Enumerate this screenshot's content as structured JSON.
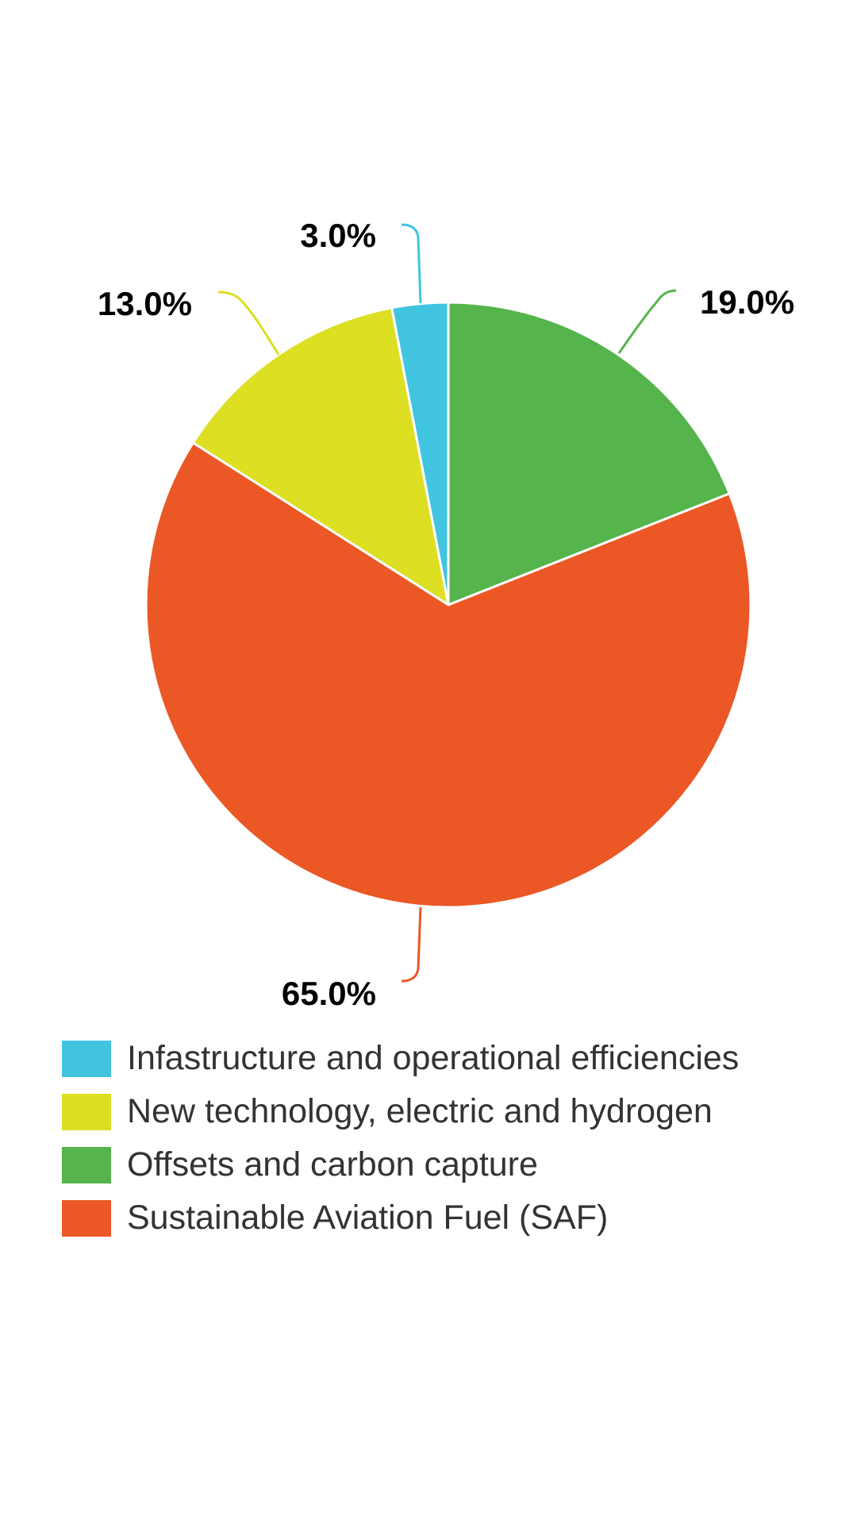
{
  "chart_data": {
    "type": "pie",
    "title": "",
    "slices": [
      {
        "label": "Infastructure and operational efficiencies",
        "value": 3.0,
        "display": "3.0%",
        "color": "#41C4E0"
      },
      {
        "label": "New technology, electric and hydrogen",
        "value": 13.0,
        "display": "13.0%",
        "color": "#DCDF22"
      },
      {
        "label": "Offsets and carbon capture",
        "value": 19.0,
        "display": "19.0%",
        "color": "#55B44B"
      },
      {
        "label": "Sustainable Aviation Fuel (SAF)",
        "value": 65.0,
        "display": "65.0%",
        "color": "#EB5725"
      }
    ],
    "legend_position": "bottom-left"
  }
}
